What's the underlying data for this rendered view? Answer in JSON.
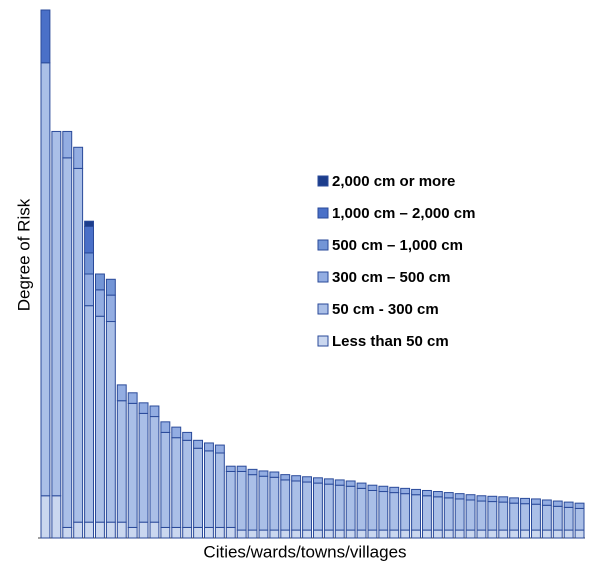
{
  "chart_data": {
    "type": "stacked_bar",
    "x_label": "Cities/wards/towns/villages",
    "y_label": "Degree of Risk",
    "categories": [
      null,
      null,
      null,
      null,
      null,
      null,
      null,
      null,
      null,
      null,
      null,
      null,
      null,
      null,
      null,
      null,
      null,
      null,
      null,
      null,
      null,
      null,
      null,
      null,
      null,
      null,
      null,
      null,
      null,
      null,
      null,
      null,
      null,
      null,
      null,
      null,
      null,
      null,
      null,
      null,
      null,
      null,
      null,
      null,
      null,
      null,
      null,
      null,
      null,
      null
    ],
    "ylim": [
      0,
      100
    ],
    "legend": "upper right",
    "series": [
      {
        "name": "Less than 50 cm",
        "color": "#cad7ef",
        "values": [
          8,
          8,
          2,
          3,
          3,
          3,
          3,
          3,
          2,
          3,
          3,
          2,
          2,
          2,
          2,
          2,
          2,
          2,
          1.5,
          1.5,
          1.5,
          1.5,
          1.5,
          1.5,
          1.5,
          1.5,
          1.5,
          1.5,
          1.5,
          1.5,
          1.5,
          1.5,
          1.5,
          1.5,
          1.5,
          1.5,
          1.5,
          1.5,
          1.5,
          1.5,
          1.5,
          1.5,
          1.5,
          1.5,
          1.5,
          1.5,
          1.5,
          1.5,
          1.5,
          1.5
        ]
      },
      {
        "name": "50 cm - 300 cm",
        "color": "#aabfe7",
        "values": [
          82,
          69,
          70,
          67,
          41,
          39,
          38,
          23,
          23.5,
          20.6,
          20,
          18,
          17,
          16.5,
          15,
          14.5,
          14.1,
          10.6,
          11.1,
          10.5,
          10.2,
          10,
          9.5,
          9.3,
          9.1,
          8.9,
          8.7,
          8.5,
          8.3,
          7.9,
          7.5,
          7.3,
          7.1,
          6.9,
          6.7,
          6.5,
          6.3,
          6.1,
          5.9,
          5.7,
          5.5,
          5.4,
          5.3,
          5.1,
          5.0,
          4.9,
          4.7,
          4.5,
          4.3,
          4.1
        ]
      },
      {
        "name": "300 cm – 500 cm",
        "color": "#93ade2",
        "values": [
          0,
          0,
          5,
          4,
          6,
          5,
          5,
          3,
          2,
          2,
          2,
          2,
          2,
          1.5,
          1.5,
          1.5,
          1.5,
          1,
          1,
          1,
          1,
          1,
          1,
          1,
          1,
          1,
          1,
          1,
          1,
          1,
          1,
          1,
          1,
          1,
          1,
          1,
          1,
          1,
          1,
          1,
          1,
          1,
          1,
          1,
          1,
          1,
          1,
          1,
          1,
          1
        ]
      },
      {
        "name": "500 cm – 1,000 cm",
        "color": "#7395d6",
        "values": [
          0,
          0,
          0,
          0,
          4,
          3,
          3,
          0,
          0,
          0,
          0,
          0,
          0,
          0,
          0,
          0,
          0,
          0,
          0,
          0,
          0,
          0,
          0,
          0,
          0,
          0,
          0,
          0,
          0,
          0,
          0,
          0,
          0,
          0,
          0,
          0,
          0,
          0,
          0,
          0,
          0,
          0,
          0,
          0,
          0,
          0,
          0,
          0,
          0,
          0
        ]
      },
      {
        "name": "1,000 cm – 2,000 cm",
        "color": "#4a70c8",
        "values": [
          10,
          0,
          0,
          0,
          5,
          0,
          0,
          0,
          0,
          0,
          0,
          0,
          0,
          0,
          0,
          0,
          0,
          0,
          0,
          0,
          0,
          0,
          0,
          0,
          0,
          0,
          0,
          0,
          0,
          0,
          0,
          0,
          0,
          0,
          0,
          0,
          0,
          0,
          0,
          0,
          0,
          0,
          0,
          0,
          0,
          0,
          0,
          0,
          0,
          0
        ]
      },
      {
        "name": "2,000 cm or more",
        "color": "#1c3d8c",
        "values": [
          0,
          0,
          0,
          0,
          1,
          0,
          0,
          0,
          0,
          0,
          0,
          0,
          0,
          0,
          0,
          0,
          0,
          0,
          0,
          0,
          0,
          0,
          0,
          0,
          0,
          0,
          0,
          0,
          0,
          0,
          0,
          0,
          0,
          0,
          0,
          0,
          0,
          0,
          0,
          0,
          0,
          0,
          0,
          0,
          0,
          0,
          0,
          0,
          0,
          0
        ]
      }
    ]
  }
}
